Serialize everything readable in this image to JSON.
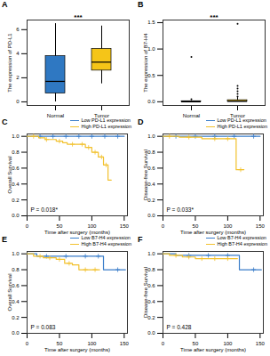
{
  "chart_data": [
    {
      "type": "box",
      "title": "A",
      "ylabel": "The expression of PD-L1",
      "categories": [
        "Normal",
        "Tumor"
      ],
      "colors": [
        "#2f78c2",
        "#f5c518"
      ],
      "boxes": [
        {
          "min": 0,
          "q1": 0.7,
          "median": 1.7,
          "q3": 3.8,
          "max": 6.5,
          "outliers": []
        },
        {
          "min": 1.5,
          "q1": 2.6,
          "median": 3.3,
          "q3": 4.4,
          "max": 6.3,
          "outliers": []
        }
      ],
      "ylim": [
        -0.3,
        6.8
      ],
      "yticks": [
        0,
        2,
        4,
        6
      ],
      "annotations": [
        "***"
      ],
      "grid": false
    },
    {
      "type": "box",
      "title": "B",
      "ylabel": "The expression of B7-H4",
      "categories": [
        "Normal",
        "Tumor"
      ],
      "colors": [
        "#2f78c2",
        "#f5c518"
      ],
      "boxes": [
        {
          "min": 0,
          "q1": 0,
          "median": 0,
          "q3": 0.01,
          "max": 0.02,
          "outliers": [
            0.05,
            0.85
          ]
        },
        {
          "min": 0,
          "q1": 0,
          "median": 0.01,
          "q3": 0.03,
          "max": 0.08,
          "outliers": [
            0.1,
            0.15,
            0.2,
            0.25,
            0.3,
            1.48
          ]
        }
      ],
      "ylim": [
        -0.07,
        1.55
      ],
      "yticks": [
        {
          "value": 0,
          "label": "0.0"
        },
        {
          "value": 0.5,
          "label": "0.5"
        },
        {
          "value": 1,
          "label": "1.0"
        },
        {
          "value": 1.5,
          "label": "1.5"
        }
      ],
      "annotations": [
        "***"
      ],
      "grid": false
    },
    {
      "type": "step",
      "title": "C",
      "xlabel": "Time after surgery (months)",
      "ylabel": "Overall Survival",
      "xlim": [
        0,
        155
      ],
      "xticks": [
        0,
        50,
        100,
        150
      ],
      "ylim": [
        0,
        1.03
      ],
      "yticks": [
        {
          "value": 0,
          "label": "0.0"
        },
        {
          "value": 0.2,
          "label": "0.2"
        },
        {
          "value": 0.4,
          "label": "0.4"
        },
        {
          "value": 0.6,
          "label": "0.6"
        },
        {
          "value": 0.8,
          "label": "0.8"
        },
        {
          "value": 1,
          "label": "1.0"
        }
      ],
      "annotations": [
        "P = 0.018*"
      ],
      "grid": false,
      "series": [
        {
          "name": "Low PD-L1 expression",
          "color": "#3a7dc9",
          "x": [
            0,
            150
          ],
          "values": [
            1,
            1
          ],
          "censored": [
            20,
            40,
            60,
            80,
            100,
            120,
            140
          ]
        },
        {
          "name": "High PD-L1 expression",
          "color": "#f2c12e",
          "x": [
            0,
            18,
            28,
            45,
            55,
            62,
            90,
            100,
            110,
            118,
            125,
            130
          ],
          "values": [
            1,
            0.98,
            0.96,
            0.94,
            0.92,
            0.9,
            0.86,
            0.8,
            0.74,
            0.64,
            0.45,
            0.45
          ],
          "censored": [
            10,
            30,
            50,
            70,
            85,
            95,
            105,
            115,
            122
          ]
        }
      ]
    },
    {
      "type": "step",
      "title": "D",
      "xlabel": "Time after surgery (months)",
      "ylabel": "Disease-free Survival",
      "xlim": [
        0,
        155
      ],
      "xticks": [
        0,
        50,
        100,
        150
      ],
      "ylim": [
        0,
        1.03
      ],
      "yticks": [
        {
          "value": 0,
          "label": "0.0"
        },
        {
          "value": 0.2,
          "label": "0.2"
        },
        {
          "value": 0.4,
          "label": "0.4"
        },
        {
          "value": 0.6,
          "label": "0.6"
        },
        {
          "value": 0.8,
          "label": "0.8"
        },
        {
          "value": 1,
          "label": "1.0"
        }
      ],
      "annotations": [
        "P = 0.033*"
      ],
      "grid": false,
      "series": [
        {
          "name": "Low PD-L1 expression",
          "color": "#3a7dc9",
          "x": [
            0,
            150
          ],
          "values": [
            1,
            1
          ],
          "censored": [
            20,
            50,
            80,
            110,
            140
          ]
        },
        {
          "name": "High PD-L1 expression",
          "color": "#f2c12e",
          "x": [
            0,
            25,
            60,
            113,
            125
          ],
          "values": [
            1,
            0.99,
            0.97,
            0.58,
            0.58
          ],
          "censored": [
            10,
            40,
            80,
            100,
            120
          ]
        }
      ]
    },
    {
      "type": "step",
      "title": "E",
      "xlabel": "Time after surgery (months)",
      "ylabel": "Overall Survival",
      "xlim": [
        0,
        155
      ],
      "xticks": [
        0,
        50,
        100,
        150
      ],
      "ylim": [
        0,
        1.03
      ],
      "yticks": [
        {
          "value": 0,
          "label": "0.0"
        },
        {
          "value": 0.2,
          "label": "0.2"
        },
        {
          "value": 0.4,
          "label": "0.4"
        },
        {
          "value": 0.6,
          "label": "0.6"
        },
        {
          "value": 0.8,
          "label": "0.8"
        },
        {
          "value": 1,
          "label": "1.0"
        }
      ],
      "annotations": [
        "P = 0.083"
      ],
      "grid": false,
      "series": [
        {
          "name": "Low B7-H4 expression",
          "color": "#3a7dc9",
          "x": [
            0,
            15,
            118,
            152
          ],
          "values": [
            1,
            0.97,
            0.8,
            0.8
          ],
          "censored": [
            30,
            60,
            90,
            110,
            140
          ]
        },
        {
          "name": "High B7-H4 expression",
          "color": "#f2c12e",
          "x": [
            0,
            10,
            25,
            45,
            58,
            70,
            80,
            112
          ],
          "values": [
            1,
            0.97,
            0.95,
            0.93,
            0.88,
            0.86,
            0.8,
            0.8
          ],
          "censored": [
            20,
            35,
            50,
            65,
            90,
            105
          ]
        }
      ]
    },
    {
      "type": "step",
      "title": "F",
      "xlabel": "Time after surgery (months)",
      "ylabel": "Disease-free Survival",
      "xlim": [
        0,
        155
      ],
      "xticks": [
        0,
        50,
        100,
        150
      ],
      "ylim": [
        0,
        1.03
      ],
      "yticks": [
        {
          "value": 0,
          "label": "0.0"
        },
        {
          "value": 0.2,
          "label": "0.2"
        },
        {
          "value": 0.4,
          "label": "0.4"
        },
        {
          "value": 0.6,
          "label": "0.6"
        },
        {
          "value": 0.8,
          "label": "0.8"
        },
        {
          "value": 1,
          "label": "1.0"
        }
      ],
      "annotations": [
        "P = 0.428"
      ],
      "grid": false,
      "series": [
        {
          "name": "Low B7-H4 expression",
          "color": "#3a7dc9",
          "x": [
            0,
            20,
            118,
            152
          ],
          "values": [
            1,
            0.98,
            0.8,
            0.8
          ],
          "censored": [
            40,
            70,
            100,
            140
          ]
        },
        {
          "name": "High B7-H4 expression",
          "color": "#f2c12e",
          "x": [
            0,
            10,
            30,
            50,
            115
          ],
          "values": [
            1,
            0.98,
            0.96,
            0.94,
            0.94
          ],
          "censored": [
            20,
            40,
            60,
            80,
            100
          ]
        }
      ]
    }
  ]
}
